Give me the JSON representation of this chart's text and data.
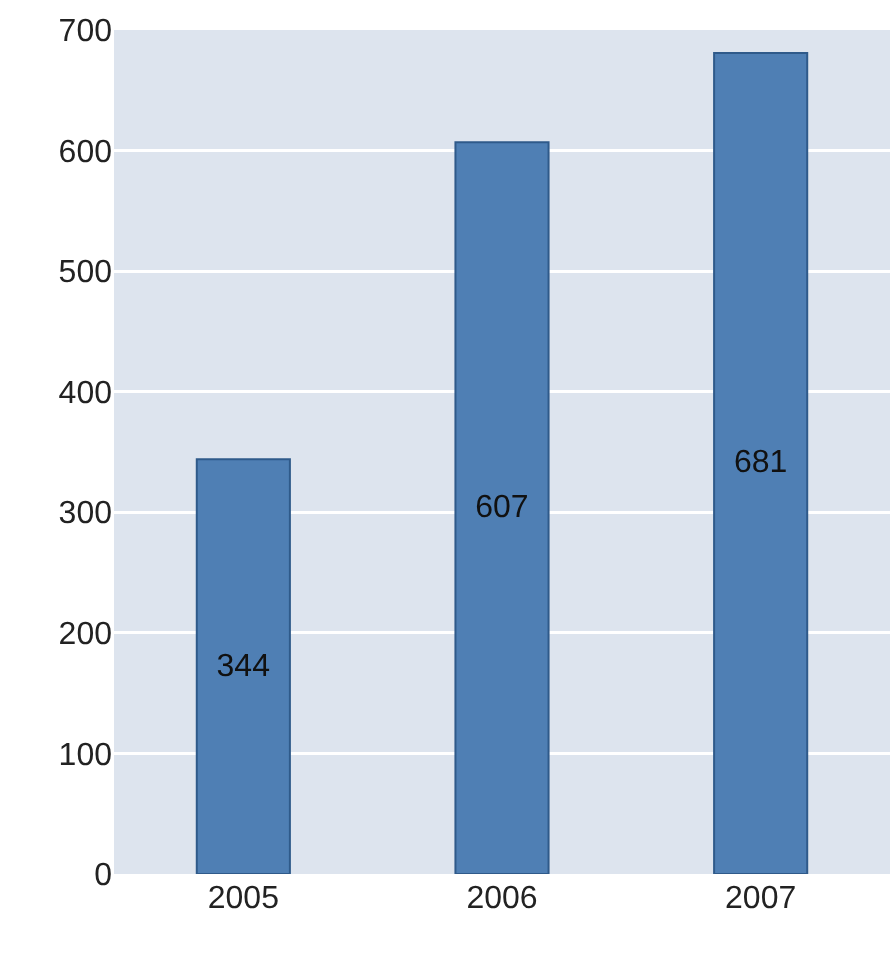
{
  "chart_data": {
    "type": "bar",
    "categories": [
      "2005",
      "2006",
      "2007"
    ],
    "values": [
      344,
      607,
      681
    ],
    "color": "#4f7fb4",
    "ylim": [
      0,
      700
    ],
    "yticks": [
      0,
      100,
      200,
      300,
      400,
      500,
      600,
      700
    ],
    "grid": "y",
    "data_labels": true
  }
}
